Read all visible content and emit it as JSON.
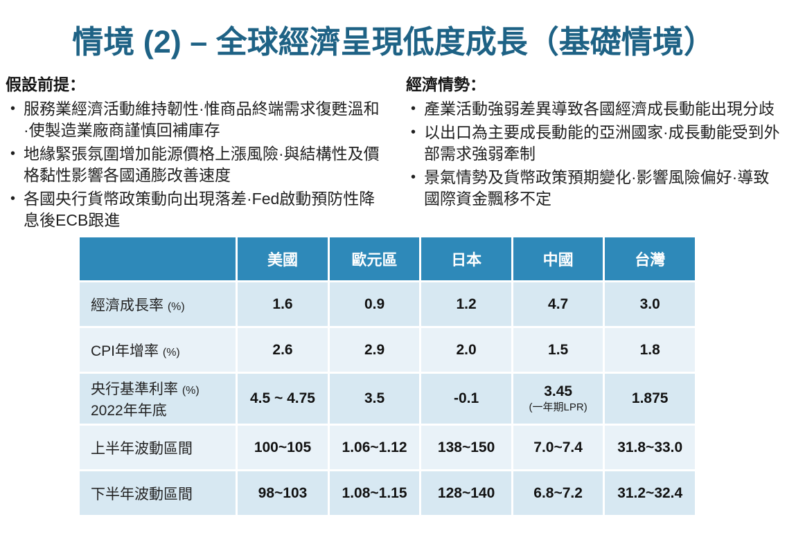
{
  "title": "情境 (2) – 全球經濟呈現低度成長（基礎情境）",
  "left_section": {
    "heading": "假設前提：",
    "bullet_glyph": "•",
    "bullets": [
      "服務業經濟活動維持韌性·惟商品終端需求復甦溫和·使製造業廠商謹慎回補庫存",
      "地緣緊張氛圍增加能源價格上漲風險·與結構性及價格黏性影響各國通膨改善速度",
      "各國央行貨幣政策動向出現落差·Fed啟動預防性降息後ECB跟進"
    ]
  },
  "right_section": {
    "heading": "經濟情勢：",
    "bullet_glyph": "•",
    "bullets": [
      "產業活動強弱差異導致各國經濟成長動能出現分歧",
      "以出口為主要成長動能的亞洲國家·成長動能受到外部需求強弱牽制",
      "景氣情勢及貨幣政策預期變化·影響風險偏好·導致國際資金飄移不定"
    ]
  },
  "table": {
    "corner_label": "",
    "columns": [
      "美國",
      "歐元區",
      "日本",
      "中國",
      "台灣"
    ],
    "rows": [
      {
        "label": "經濟成長率",
        "unit": "(%)",
        "line2": "",
        "note": "",
        "values": [
          "1.6",
          "0.9",
          "1.2",
          "4.7",
          "3.0"
        ]
      },
      {
        "label": "CPI年增率",
        "unit": "(%)",
        "line2": "",
        "note": "",
        "values": [
          "2.6",
          "2.9",
          "2.0",
          "1.5",
          "1.8"
        ]
      },
      {
        "label": "央行基準利率",
        "unit": "(%)",
        "line2": "2022年年底",
        "note": "(一年期LPR)",
        "values": [
          "4.5 ~ 4.75",
          "3.5",
          "-0.1",
          "3.45",
          "1.875"
        ]
      },
      {
        "label": "上半年波動區間",
        "unit": "",
        "line2": "",
        "note": "",
        "values": [
          "100~105",
          "1.06~1.12",
          "138~150",
          "7.0~7.4",
          "31.8~33.0"
        ]
      },
      {
        "label": "下半年波動區間",
        "unit": "",
        "line2": "",
        "note": "",
        "values": [
          "98~103",
          "1.08~1.15",
          "128~140",
          "6.8~7.2",
          "31.2~32.4"
        ]
      }
    ]
  },
  "colors": {
    "title_text": "#1E6285",
    "table_header_bg": "#2E89B9",
    "table_header_text": "#FFFFFF",
    "row_odd_bg": "#D7E8F2",
    "row_even_bg": "#E9F2F8",
    "body_text": "#1F1F1F",
    "background": "#FFFFFF"
  }
}
